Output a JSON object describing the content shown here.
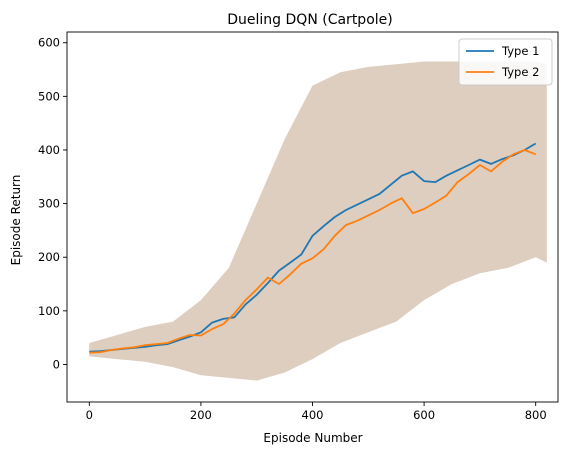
{
  "chart_data": {
    "type": "line",
    "title": "Dueling DQN (Cartpole)",
    "xlabel": "Episode Number",
    "ylabel": "Episode Return",
    "xlim": [
      -40,
      840
    ],
    "ylim": [
      -70,
      620
    ],
    "xticks": [
      0,
      200,
      400,
      600,
      800
    ],
    "yticks": [
      0,
      100,
      200,
      300,
      400,
      500,
      600
    ],
    "grid": false,
    "legend_position": "top-right",
    "band": {
      "color": "#d9c9b8",
      "x": [
        0,
        50,
        100,
        150,
        200,
        250,
        300,
        350,
        400,
        450,
        500,
        550,
        600,
        650,
        700,
        750,
        800,
        820
      ],
      "lower": [
        15,
        10,
        5,
        -5,
        -20,
        -25,
        -30,
        -15,
        10,
        40,
        60,
        80,
        120,
        150,
        170,
        180,
        200,
        190
      ],
      "upper": [
        40,
        55,
        70,
        80,
        120,
        180,
        300,
        420,
        520,
        545,
        555,
        560,
        565,
        565,
        565,
        565,
        565,
        560
      ]
    },
    "series": [
      {
        "name": "Type 1",
        "color": "#1f77b4",
        "x": [
          0,
          20,
          40,
          60,
          80,
          100,
          120,
          140,
          160,
          180,
          200,
          220,
          240,
          260,
          280,
          300,
          320,
          340,
          360,
          380,
          400,
          420,
          440,
          460,
          480,
          500,
          520,
          540,
          560,
          580,
          600,
          620,
          640,
          660,
          680,
          700,
          720,
          740,
          760,
          780,
          800
        ],
        "y": [
          24,
          25,
          27,
          29,
          31,
          33,
          36,
          38,
          45,
          52,
          60,
          78,
          85,
          88,
          112,
          130,
          152,
          175,
          190,
          205,
          240,
          258,
          275,
          288,
          298,
          308,
          318,
          335,
          352,
          360,
          342,
          340,
          352,
          362,
          372,
          382,
          374,
          383,
          390,
          400,
          412
        ]
      },
      {
        "name": "Type 2",
        "color": "#ff7f0e",
        "x": [
          0,
          20,
          40,
          60,
          80,
          100,
          120,
          140,
          160,
          180,
          200,
          220,
          240,
          260,
          280,
          300,
          320,
          340,
          360,
          380,
          400,
          420,
          440,
          460,
          480,
          500,
          520,
          540,
          560,
          580,
          600,
          620,
          640,
          660,
          680,
          700,
          720,
          740,
          760,
          780,
          800
        ],
        "y": [
          22,
          23,
          27,
          30,
          32,
          36,
          38,
          40,
          48,
          55,
          54,
          66,
          75,
          95,
          120,
          140,
          162,
          150,
          168,
          188,
          198,
          215,
          240,
          260,
          268,
          278,
          288,
          300,
          310,
          282,
          290,
          302,
          315,
          340,
          355,
          372,
          360,
          378,
          392,
          400,
          392
        ]
      }
    ]
  }
}
